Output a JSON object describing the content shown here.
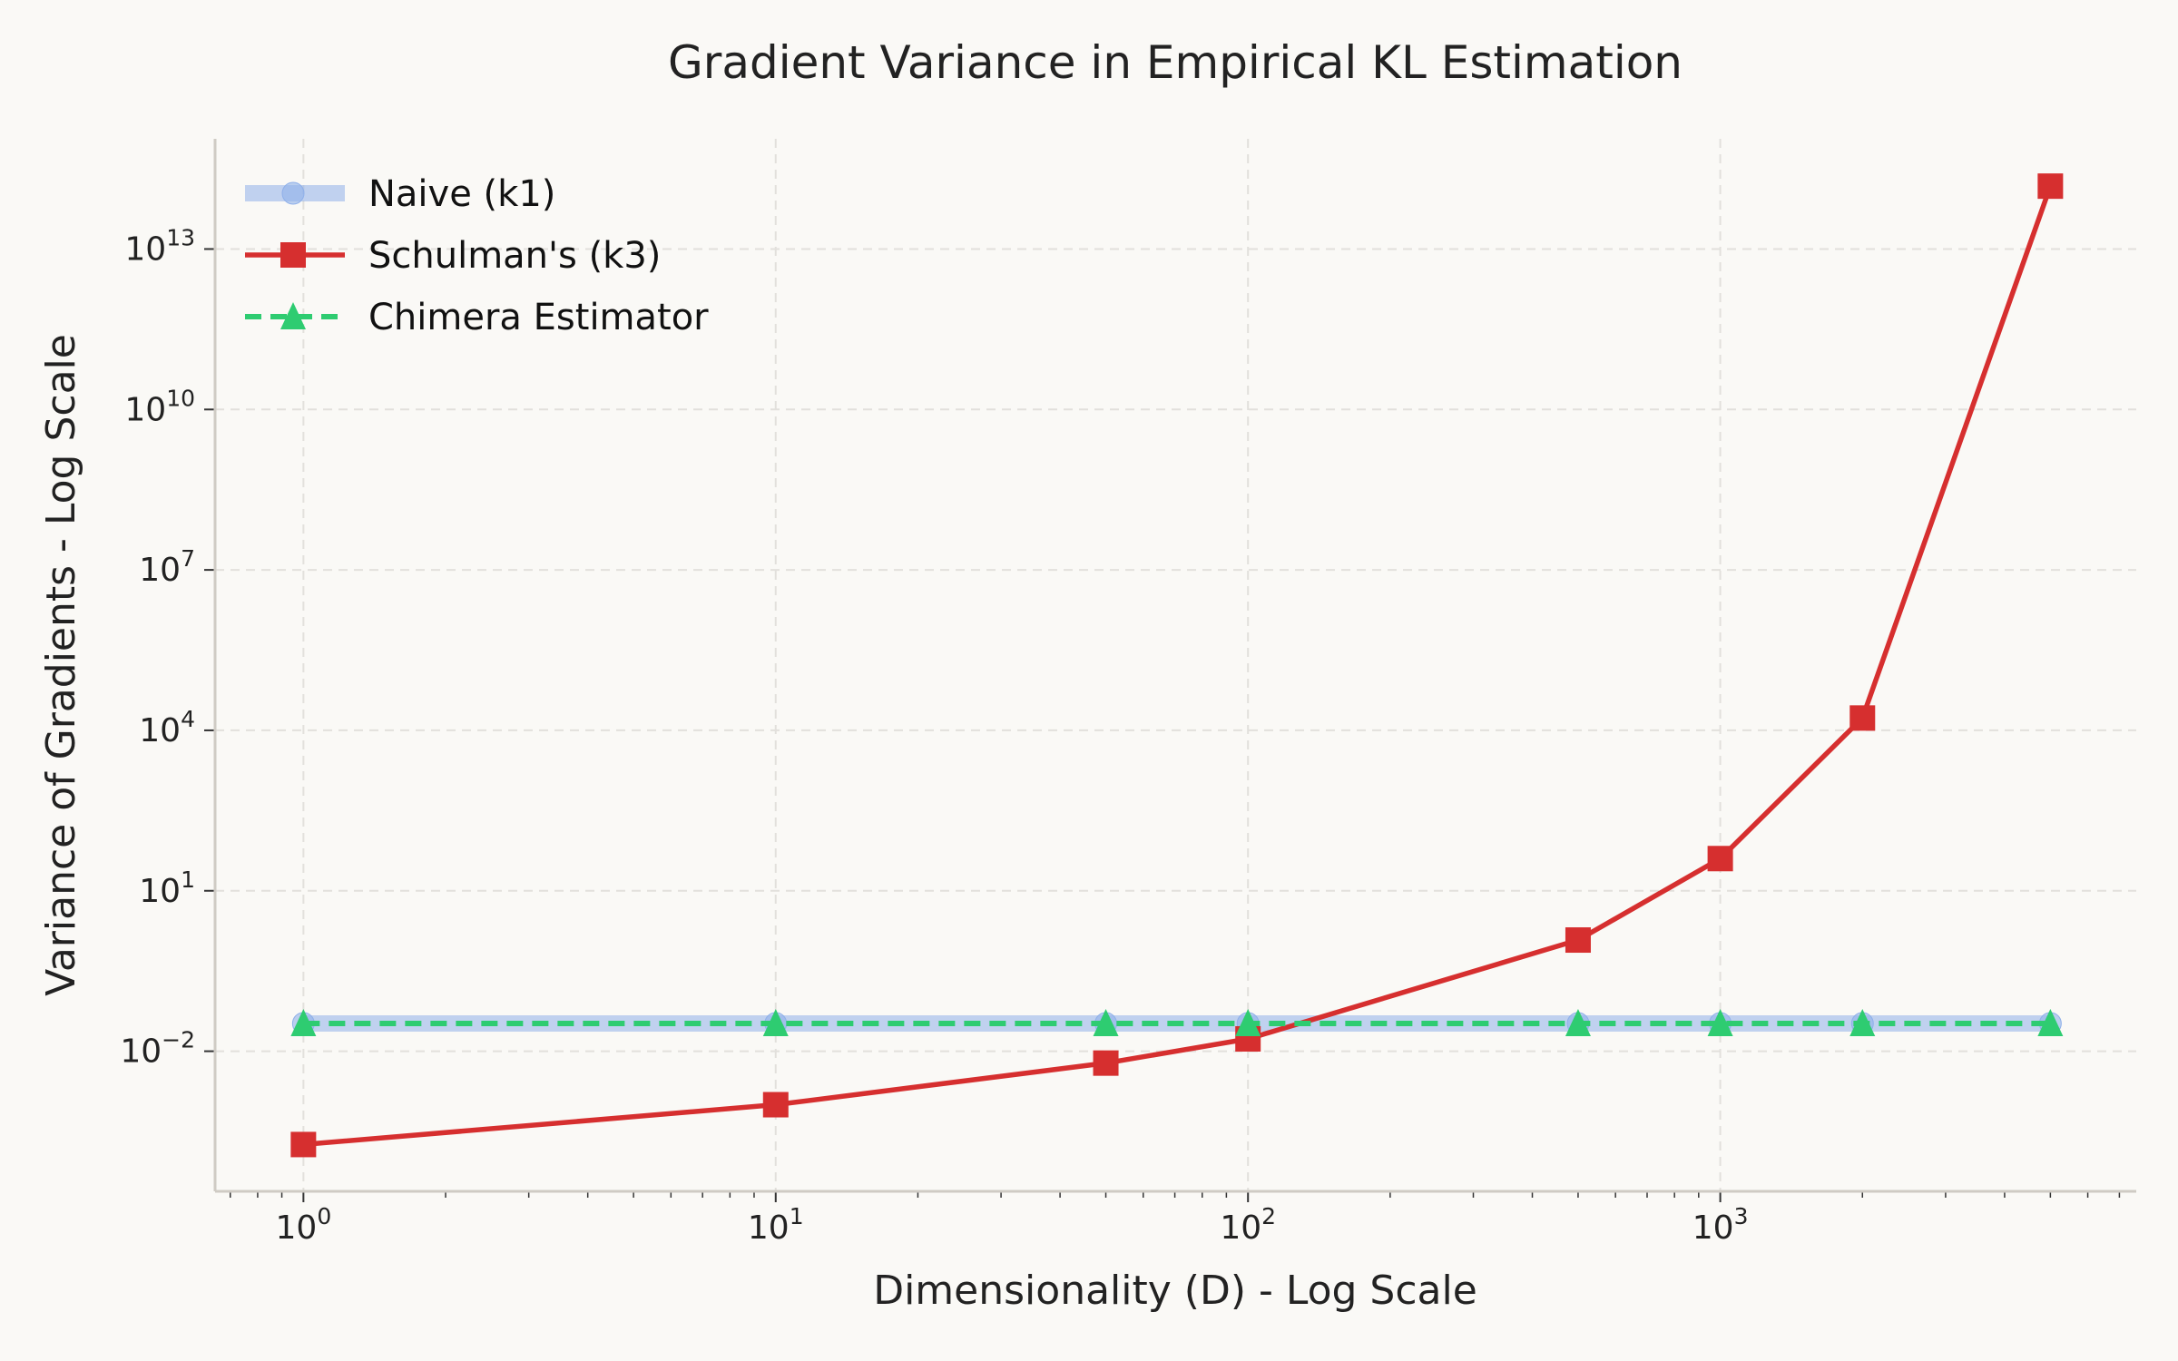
{
  "chart_data": {
    "type": "line",
    "title": "Gradient Variance in Empirical KL Estimation",
    "xlabel": "Dimensionality (D) - Log Scale",
    "ylabel": "Variance of Gradients - Log Scale",
    "xscale": "log",
    "yscale": "log",
    "xlim": [
      0.65,
      7600
    ],
    "ylim": [
      2.4e-05,
      1150000000000000.0
    ],
    "grid": true,
    "legend_placement": "top-left",
    "x_ticks": [
      {
        "value": 1,
        "base": "10",
        "exp": "0"
      },
      {
        "value": 10,
        "base": "10",
        "exp": "1"
      },
      {
        "value": 100,
        "base": "10",
        "exp": "2"
      },
      {
        "value": 1000,
        "base": "10",
        "exp": "3"
      }
    ],
    "y_ticks": [
      {
        "value": 0.01,
        "base": "10",
        "exp": "−2"
      },
      {
        "value": 10,
        "base": "10",
        "exp": "1"
      },
      {
        "value": 10000,
        "base": "10",
        "exp": "4"
      },
      {
        "value": 10000000.0,
        "base": "10",
        "exp": "7"
      },
      {
        "value": 10000000000.0,
        "base": "10",
        "exp": "10"
      },
      {
        "value": 10000000000000.0,
        "base": "10",
        "exp": "13"
      }
    ],
    "x": [
      1,
      10,
      50,
      100,
      500,
      1000,
      2000,
      5000
    ],
    "series": [
      {
        "name": "Naive (k1)",
        "color": "#8fb0ea",
        "marker": "circle",
        "linestyle": "solid-thick-translucent",
        "values": [
          0.033,
          0.033,
          0.033,
          0.033,
          0.033,
          0.033,
          0.033,
          0.033
        ]
      },
      {
        "name": "Schulman's (k3)",
        "color": "#d62f2f",
        "marker": "square",
        "linestyle": "solid",
        "values": [
          0.00018,
          0.001,
          0.006,
          0.017,
          1.2,
          40,
          17000,
          150000000000000.0
        ]
      },
      {
        "name": "Chimera Estimator",
        "color": "#2ecc71",
        "marker": "triangle",
        "linestyle": "dashed",
        "values": [
          0.033,
          0.033,
          0.033,
          0.033,
          0.033,
          0.033,
          0.033,
          0.033
        ]
      }
    ]
  }
}
